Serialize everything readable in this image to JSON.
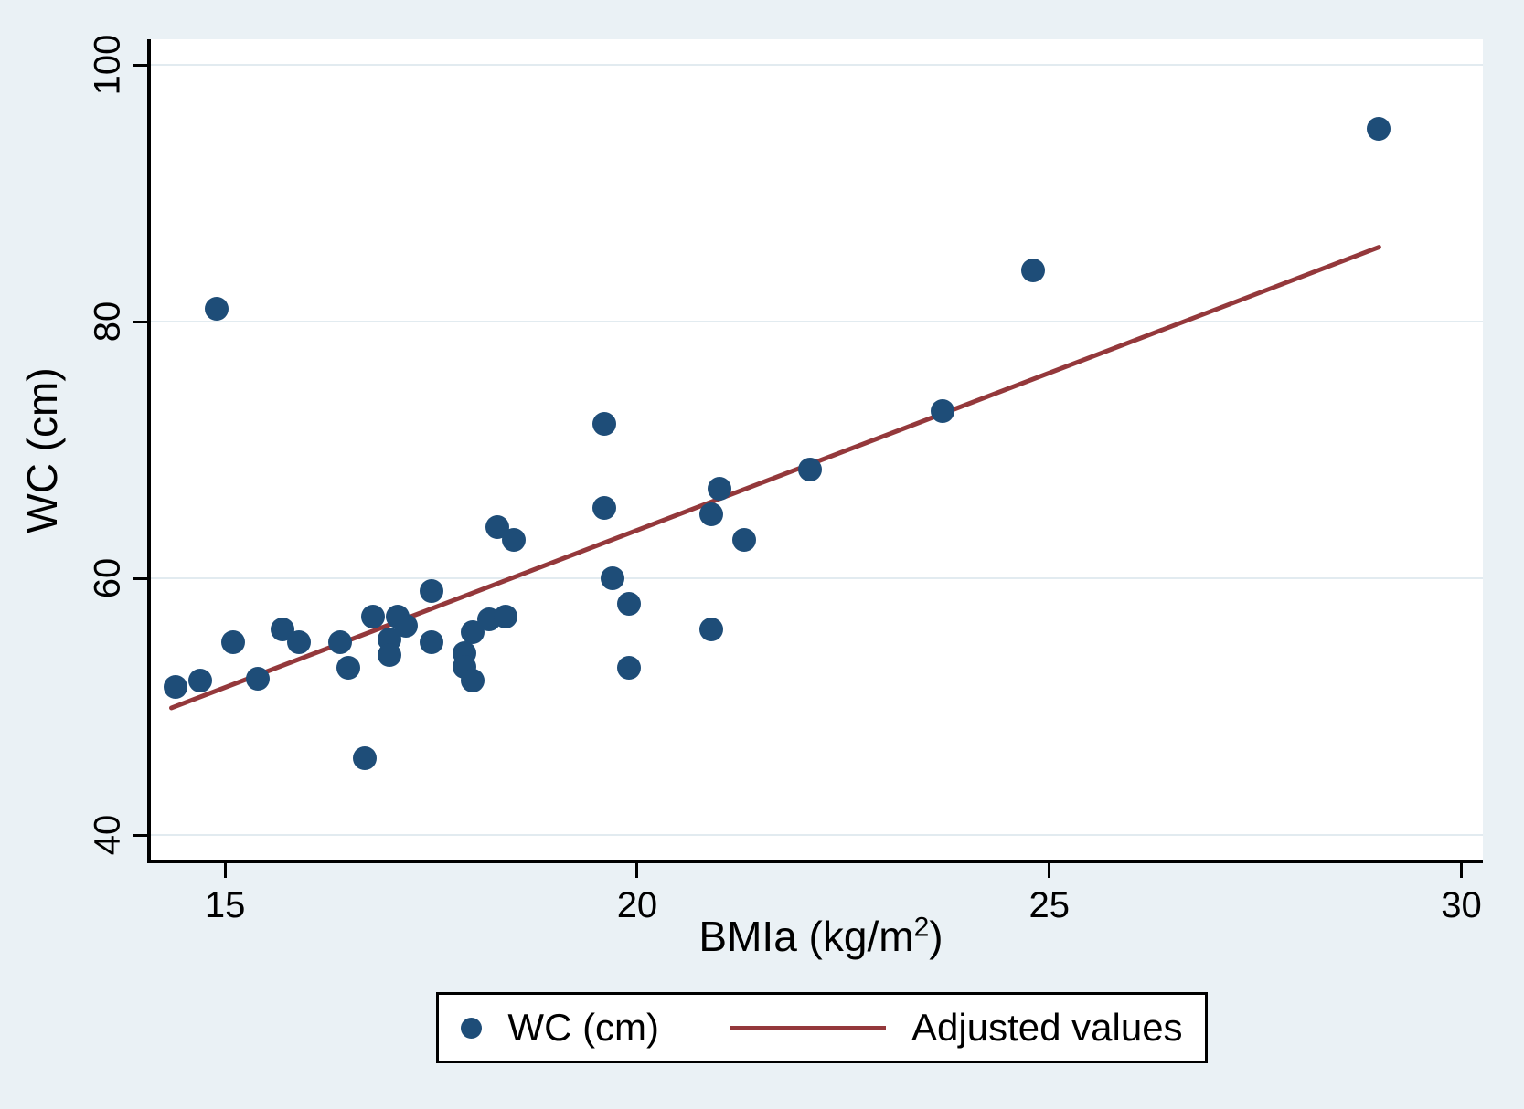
{
  "figure": {
    "background": "#eaf1f5",
    "plot_background": "#ffffff",
    "grid_color": "#e2ebf0",
    "axis_color": "#000000",
    "marker_color": "#1e4d78",
    "line_color": "#94383b"
  },
  "chart_data": {
    "type": "scatter",
    "title": "",
    "xlabel": "BMIa (kg/m²)",
    "ylabel": "WC (cm)",
    "xlim": [
      14.1,
      30.26
    ],
    "ylim": [
      38.08,
      102.0
    ],
    "x_ticks": [
      15,
      20,
      25,
      30
    ],
    "y_ticks": [
      40,
      60,
      80,
      100
    ],
    "grid": "horizontal gridlines at y ticks",
    "legend_position": "bottom",
    "series": [
      {
        "name": "WC (cm)",
        "type": "scatter",
        "color": "#1e4d78",
        "points": [
          [
            14.4,
            51.5
          ],
          [
            14.7,
            52.0
          ],
          [
            14.9,
            81.0
          ],
          [
            15.1,
            55.0
          ],
          [
            15.4,
            52.2
          ],
          [
            15.7,
            56.0
          ],
          [
            15.9,
            55.0
          ],
          [
            16.4,
            55.0
          ],
          [
            16.5,
            53.0
          ],
          [
            16.7,
            46.0
          ],
          [
            16.8,
            57.0
          ],
          [
            17.0,
            55.2
          ],
          [
            17.0,
            54.0
          ],
          [
            17.1,
            57.0
          ],
          [
            17.2,
            56.3
          ],
          [
            17.5,
            59.0
          ],
          [
            17.5,
            55.0
          ],
          [
            17.9,
            54.2
          ],
          [
            17.9,
            53.1
          ],
          [
            18.0,
            52.0
          ],
          [
            18.0,
            55.8
          ],
          [
            18.2,
            56.8
          ],
          [
            18.4,
            57.0
          ],
          [
            18.3,
            64.0
          ],
          [
            18.5,
            63.0
          ],
          [
            19.6,
            72.0
          ],
          [
            19.6,
            65.5
          ],
          [
            19.7,
            60.0
          ],
          [
            19.9,
            58.0
          ],
          [
            19.9,
            53.0
          ],
          [
            20.9,
            65.0
          ],
          [
            20.9,
            56.0
          ],
          [
            21.0,
            67.0
          ],
          [
            21.3,
            63.0
          ],
          [
            22.1,
            68.5
          ],
          [
            23.7,
            73.0
          ],
          [
            24.8,
            84.0
          ],
          [
            29.0,
            95.0
          ]
        ]
      },
      {
        "name": "Adjusted values",
        "type": "line",
        "color": "#94383b",
        "points": [
          [
            14.35,
            49.9
          ],
          [
            29.0,
            85.8
          ]
        ]
      }
    ]
  }
}
